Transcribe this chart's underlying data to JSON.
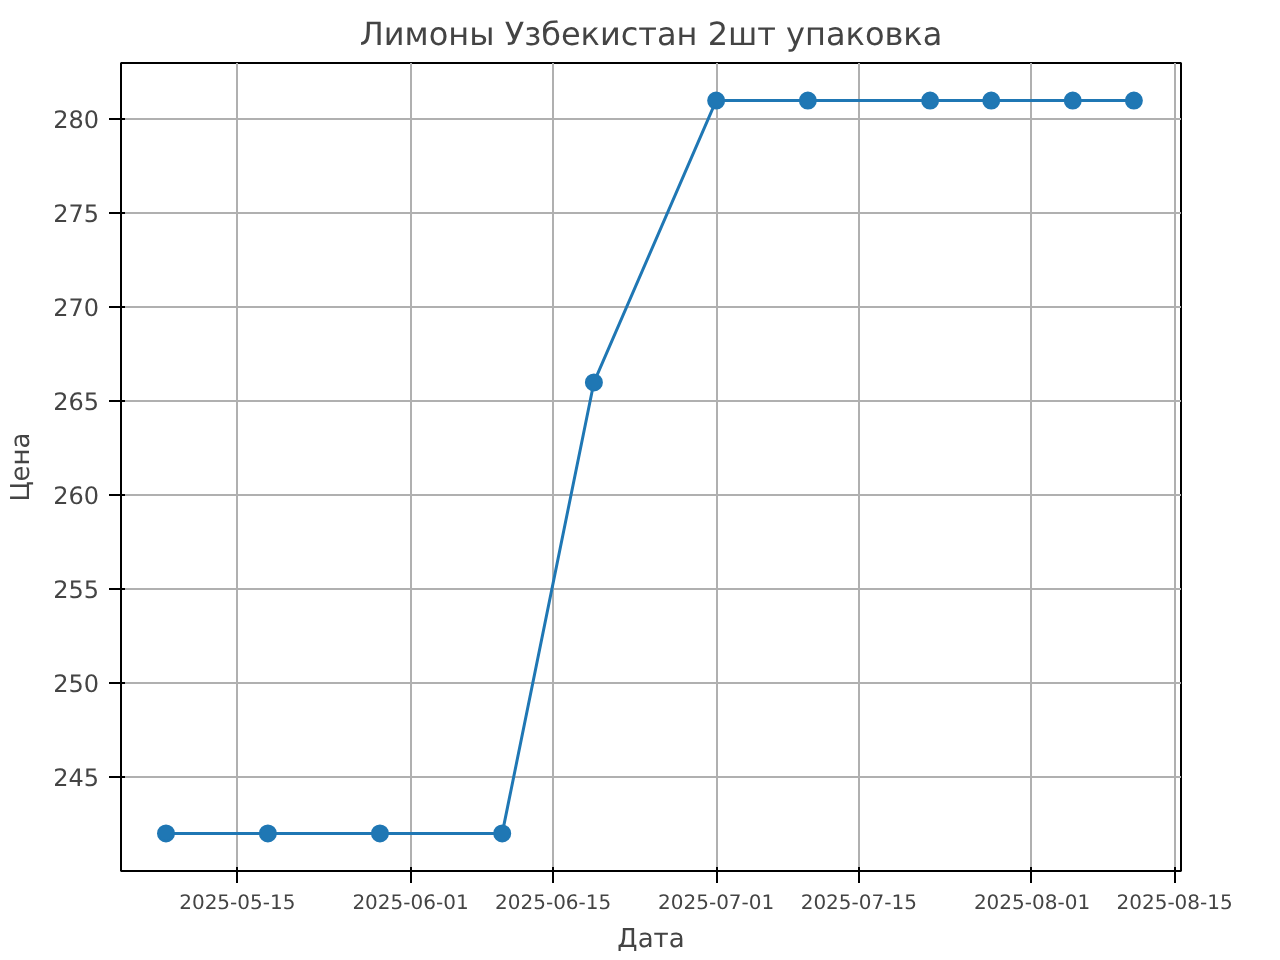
{
  "chart_data": {
    "type": "line",
    "title": "Лимоны Узбекистан 2шт упаковка",
    "xlabel": "Дата",
    "ylabel": "Цена",
    "x": [
      "2025-05-08",
      "2025-05-18",
      "2025-05-29",
      "2025-06-10",
      "2025-06-19",
      "2025-07-01",
      "2025-07-10",
      "2025-07-22",
      "2025-07-28",
      "2025-08-05",
      "2025-08-11"
    ],
    "series": [
      {
        "color": "#1f77b4",
        "values": [
          242,
          242,
          242,
          242,
          266,
          281,
          281,
          281,
          281,
          281,
          281
        ]
      }
    ],
    "xlim": [
      "2025-05-03T14:00",
      "2025-08-15T15:00"
    ],
    "xticks": [
      "2025-05-15",
      "2025-06-01",
      "2025-06-15",
      "2025-07-01",
      "2025-07-15",
      "2025-08-01",
      "2025-08-15"
    ],
    "ylim": [
      240,
      283
    ],
    "yticks": [
      245,
      250,
      255,
      260,
      265,
      270,
      275,
      280
    ],
    "grid": true,
    "marker": "circle",
    "line_style": "solid"
  }
}
